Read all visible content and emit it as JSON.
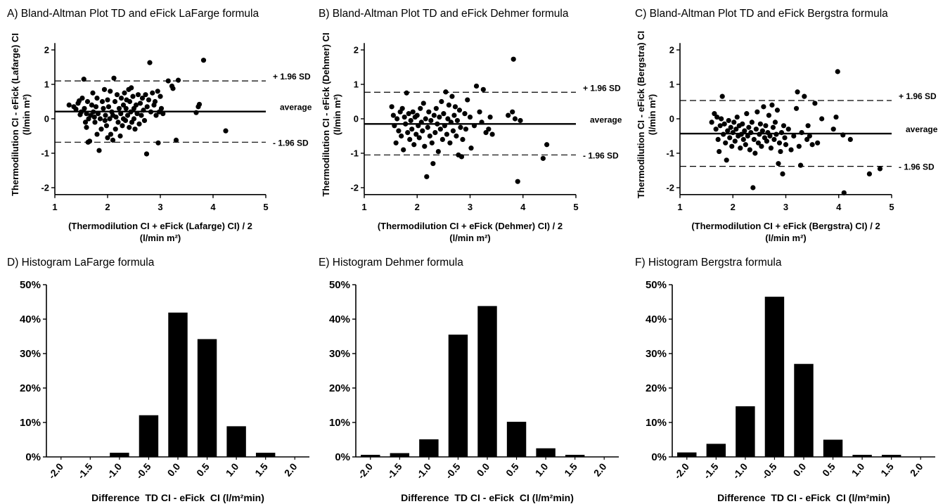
{
  "chart_data": [
    {
      "id": "A",
      "type": "scatter",
      "title": "A) Bland-Altman Plot TD and eFick LaFarge formula",
      "xlabel": "(Thermodilution CI + eFick (Lafarge) CI) / 2",
      "xlabel2": "(l/min m²)",
      "ylabel": "Thermodilution CI - eFick (Lafarge) CI",
      "ylabel2": "(l/min m²)",
      "xlim": [
        1,
        5
      ],
      "ylim": [
        -2.2,
        2.2
      ],
      "xticks": [
        1,
        2,
        3,
        4,
        5
      ],
      "yticks": [
        -2,
        -1,
        0,
        1,
        2
      ],
      "mean": 0.21,
      "upper": 1.1,
      "lower": -0.68,
      "upper_label": "+ 1.96 SD",
      "mean_label": "average",
      "lower_label": "- 1.96 SD",
      "points": [
        [
          1.27,
          0.4
        ],
        [
          1.36,
          0.35
        ],
        [
          1.4,
          0.28
        ],
        [
          1.44,
          0.45
        ],
        [
          1.46,
          0.52
        ],
        [
          1.48,
          0.12
        ],
        [
          1.5,
          0.2
        ],
        [
          1.52,
          0.6
        ],
        [
          1.55,
          1.15
        ],
        [
          1.56,
          0.3
        ],
        [
          1.58,
          -0.1
        ],
        [
          1.6,
          -0.25
        ],
        [
          1.6,
          0.15
        ],
        [
          1.62,
          0.5
        ],
        [
          1.63,
          -0.68
        ],
        [
          1.64,
          0.0
        ],
        [
          1.66,
          -0.65
        ],
        [
          1.68,
          0.1
        ],
        [
          1.7,
          0.4
        ],
        [
          1.72,
          0.75
        ],
        [
          1.73,
          0.2
        ],
        [
          1.75,
          0.05
        ],
        [
          1.76,
          -0.1
        ],
        [
          1.78,
          0.35
        ],
        [
          1.8,
          0.6
        ],
        [
          1.8,
          -0.45
        ],
        [
          1.82,
          0.15
        ],
        [
          1.84,
          -0.92
        ],
        [
          1.86,
          0.0
        ],
        [
          1.88,
          -0.3
        ],
        [
          1.9,
          0.5
        ],
        [
          1.92,
          0.3
        ],
        [
          1.94,
          0.85
        ],
        [
          1.95,
          -0.05
        ],
        [
          1.96,
          0.1
        ],
        [
          1.98,
          -0.2
        ],
        [
          2.0,
          0.55
        ],
        [
          2.0,
          -0.55
        ],
        [
          2.02,
          0.35
        ],
        [
          2.04,
          0.0
        ],
        [
          2.05,
          0.8
        ],
        [
          2.06,
          -0.45
        ],
        [
          2.08,
          0.2
        ],
        [
          2.1,
          -0.62
        ],
        [
          2.1,
          0.1
        ],
        [
          2.12,
          1.18
        ],
        [
          2.14,
          0.5
        ],
        [
          2.15,
          -0.3
        ],
        [
          2.16,
          0.05
        ],
        [
          2.18,
          0.7
        ],
        [
          2.2,
          -0.1
        ],
        [
          2.22,
          0.3
        ],
        [
          2.24,
          -0.5
        ],
        [
          2.25,
          0.15
        ],
        [
          2.26,
          0.6
        ],
        [
          2.28,
          -0.2
        ],
        [
          2.3,
          0.4
        ],
        [
          2.3,
          0.0
        ],
        [
          2.32,
          0.75
        ],
        [
          2.34,
          -0.05
        ],
        [
          2.35,
          0.3
        ],
        [
          2.36,
          0.55
        ],
        [
          2.38,
          0.1
        ],
        [
          2.4,
          0.85
        ],
        [
          2.41,
          -0.25
        ],
        [
          2.42,
          0.5
        ],
        [
          2.44,
          0.2
        ],
        [
          2.45,
          0.9
        ],
        [
          2.46,
          -0.1
        ],
        [
          2.48,
          0.65
        ],
        [
          2.5,
          0.3
        ],
        [
          2.5,
          0.0
        ],
        [
          2.52,
          -0.3
        ],
        [
          2.54,
          0.4
        ],
        [
          2.56,
          0.15
        ],
        [
          2.58,
          0.7
        ],
        [
          2.6,
          -0.15
        ],
        [
          2.62,
          0.45
        ],
        [
          2.64,
          0.1
        ],
        [
          2.66,
          0.6
        ],
        [
          2.68,
          0.25
        ],
        [
          2.7,
          -0.05
        ],
        [
          2.72,
          0.7
        ],
        [
          2.74,
          -1.02
        ],
        [
          2.75,
          0.35
        ],
        [
          2.78,
          0.55
        ],
        [
          2.8,
          1.63
        ],
        [
          2.82,
          0.2
        ],
        [
          2.85,
          0.75
        ],
        [
          2.88,
          0.4
        ],
        [
          2.9,
          0.5
        ],
        [
          2.92,
          0.1
        ],
        [
          2.95,
          0.8
        ],
        [
          2.96,
          -0.7
        ],
        [
          2.98,
          0.2
        ],
        [
          3.0,
          0.65
        ],
        [
          3.02,
          0.3
        ],
        [
          3.05,
          0.15
        ],
        [
          3.15,
          1.1
        ],
        [
          3.22,
          0.95
        ],
        [
          3.24,
          0.88
        ],
        [
          3.3,
          -0.62
        ],
        [
          3.34,
          1.12
        ],
        [
          3.68,
          0.18
        ],
        [
          3.72,
          0.35
        ],
        [
          3.74,
          0.42
        ],
        [
          3.82,
          1.7
        ],
        [
          4.24,
          -0.35
        ]
      ]
    },
    {
      "id": "B",
      "type": "scatter",
      "title": "B) Bland-Altman Plot TD and eFick Dehmer formula",
      "xlabel": "(Thermodilution CI + eFick (Dehmer) CI) / 2",
      "xlabel2": "(l/min m²)",
      "ylabel": "Thermodilution CI - eFick (Dehmer) CI",
      "ylabel2": "(l/min m²)",
      "xlim": [
        1,
        5
      ],
      "ylim": [
        -2.2,
        2.2
      ],
      "xticks": [
        1,
        2,
        3,
        4,
        5
      ],
      "yticks": [
        -2,
        -1,
        0,
        1,
        2
      ],
      "mean": -0.15,
      "upper": 0.77,
      "lower": -1.05,
      "upper_label": "+ 1.96 SD",
      "mean_label": "average",
      "lower_label": "- 1.96 SD",
      "points": [
        [
          1.52,
          0.35
        ],
        [
          1.55,
          0.1
        ],
        [
          1.57,
          -0.2
        ],
        [
          1.6,
          -0.7
        ],
        [
          1.62,
          0.0
        ],
        [
          1.65,
          -0.35
        ],
        [
          1.68,
          0.2
        ],
        [
          1.7,
          -0.5
        ],
        [
          1.72,
          0.3
        ],
        [
          1.74,
          -0.9
        ],
        [
          1.76,
          0.05
        ],
        [
          1.78,
          -0.15
        ],
        [
          1.8,
          0.75
        ],
        [
          1.82,
          -0.4
        ],
        [
          1.84,
          0.15
        ],
        [
          1.86,
          -0.6
        ],
        [
          1.88,
          -0.05
        ],
        [
          1.9,
          -0.3
        ],
        [
          1.92,
          0.2
        ],
        [
          1.94,
          -0.75
        ],
        [
          1.96,
          0.05
        ],
        [
          1.98,
          -0.45
        ],
        [
          2.0,
          0.1
        ],
        [
          2.02,
          -0.2
        ],
        [
          2.04,
          -0.55
        ],
        [
          2.06,
          0.3
        ],
        [
          2.08,
          -0.1
        ],
        [
          2.1,
          -0.35
        ],
        [
          2.12,
          0.45
        ],
        [
          2.14,
          -0.8
        ],
        [
          2.16,
          0.0
        ],
        [
          2.18,
          -1.68
        ],
        [
          2.2,
          -0.25
        ],
        [
          2.22,
          0.2
        ],
        [
          2.24,
          -0.5
        ],
        [
          2.26,
          -0.05
        ],
        [
          2.28,
          -0.7
        ],
        [
          2.3,
          -1.3
        ],
        [
          2.32,
          0.1
        ],
        [
          2.34,
          -0.4
        ],
        [
          2.36,
          0.3
        ],
        [
          2.38,
          -0.15
        ],
        [
          2.4,
          -0.95
        ],
        [
          2.42,
          0.05
        ],
        [
          2.44,
          -0.3
        ],
        [
          2.46,
          0.5
        ],
        [
          2.48,
          -0.6
        ],
        [
          2.5,
          0.15
        ],
        [
          2.52,
          -0.2
        ],
        [
          2.54,
          0.78
        ],
        [
          2.56,
          -0.45
        ],
        [
          2.58,
          0.0
        ],
        [
          2.6,
          0.4
        ],
        [
          2.62,
          -0.7
        ],
        [
          2.64,
          -0.1
        ],
        [
          2.66,
          0.65
        ],
        [
          2.68,
          -0.35
        ],
        [
          2.7,
          0.1
        ],
        [
          2.72,
          0.35
        ],
        [
          2.74,
          -0.5
        ],
        [
          2.76,
          -0.05
        ],
        [
          2.78,
          -1.05
        ],
        [
          2.8,
          0.25
        ],
        [
          2.82,
          -0.25
        ],
        [
          2.84,
          -1.1
        ],
        [
          2.86,
          -0.6
        ],
        [
          2.9,
          0.15
        ],
        [
          2.92,
          -0.3
        ],
        [
          2.95,
          0.55
        ],
        [
          3.0,
          0.05
        ],
        [
          3.02,
          -0.85
        ],
        [
          3.08,
          -0.2
        ],
        [
          3.12,
          0.95
        ],
        [
          3.18,
          0.2
        ],
        [
          3.22,
          -0.1
        ],
        [
          3.25,
          0.85
        ],
        [
          3.3,
          -0.4
        ],
        [
          3.35,
          -0.3
        ],
        [
          3.38,
          0.05
        ],
        [
          3.42,
          -0.45
        ],
        [
          3.72,
          0.1
        ],
        [
          3.8,
          0.2
        ],
        [
          3.82,
          1.73
        ],
        [
          3.85,
          0.0
        ],
        [
          3.9,
          -1.82
        ],
        [
          3.95,
          -0.05
        ],
        [
          4.38,
          -1.15
        ],
        [
          4.45,
          -0.75
        ]
      ]
    },
    {
      "id": "C",
      "type": "scatter",
      "title": "C) Bland-Altman Plot TD and eFick Bergstra formula",
      "xlabel": "(Thermodilution CI + eFick (Bergstra) CI) / 2",
      "xlabel2": "(l/min m²)",
      "ylabel": "Thermodilution CI - eFick (Bergstra) CI",
      "ylabel2": "(l/min m²)",
      "xlim": [
        1,
        5
      ],
      "ylim": [
        -2.2,
        2.2
      ],
      "xticks": [
        1,
        2,
        3,
        4,
        5
      ],
      "yticks": [
        -2,
        -1,
        0,
        1,
        2
      ],
      "mean": -0.43,
      "upper": 0.53,
      "lower": -1.38,
      "upper_label": "+ 1.96 SD",
      "mean_label": "average",
      "lower_label": "- 1.96 SD",
      "points": [
        [
          1.6,
          -0.1
        ],
        [
          1.65,
          0.15
        ],
        [
          1.68,
          -0.3
        ],
        [
          1.7,
          0.05
        ],
        [
          1.72,
          -0.6
        ],
        [
          1.74,
          -0.95
        ],
        [
          1.76,
          -0.2
        ],
        [
          1.78,
          0.0
        ],
        [
          1.8,
          0.65
        ],
        [
          1.82,
          -0.45
        ],
        [
          1.84,
          -0.15
        ],
        [
          1.86,
          -0.7
        ],
        [
          1.88,
          -1.2
        ],
        [
          1.9,
          -0.35
        ],
        [
          1.92,
          -0.05
        ],
        [
          1.94,
          -0.55
        ],
        [
          1.96,
          -0.25
        ],
        [
          1.98,
          -0.8
        ],
        [
          2.0,
          -0.4
        ],
        [
          2.02,
          -0.1
        ],
        [
          2.04,
          -0.65
        ],
        [
          2.06,
          -0.3
        ],
        [
          2.08,
          0.05
        ],
        [
          2.1,
          -0.5
        ],
        [
          2.12,
          -0.2
        ],
        [
          2.14,
          -0.85
        ],
        [
          2.16,
          -0.45
        ],
        [
          2.18,
          -0.15
        ],
        [
          2.2,
          -0.6
        ],
        [
          2.22,
          -0.35
        ],
        [
          2.24,
          -0.75
        ],
        [
          2.26,
          0.15
        ],
        [
          2.28,
          -0.5
        ],
        [
          2.3,
          -0.25
        ],
        [
          2.32,
          -0.9
        ],
        [
          2.34,
          -0.4
        ],
        [
          2.36,
          -0.1
        ],
        [
          2.38,
          -2.0
        ],
        [
          2.4,
          -0.6
        ],
        [
          2.42,
          -1.0
        ],
        [
          2.44,
          -0.3
        ],
        [
          2.46,
          0.2
        ],
        [
          2.48,
          -0.7
        ],
        [
          2.5,
          -0.45
        ],
        [
          2.52,
          -0.15
        ],
        [
          2.54,
          -0.8
        ],
        [
          2.56,
          -0.35
        ],
        [
          2.58,
          0.35
        ],
        [
          2.6,
          -0.55
        ],
        [
          2.62,
          -0.2
        ],
        [
          2.64,
          -0.65
        ],
        [
          2.66,
          -0.4
        ],
        [
          2.68,
          0.1
        ],
        [
          2.7,
          -0.5
        ],
        [
          2.72,
          -0.85
        ],
        [
          2.74,
          0.4
        ],
        [
          2.76,
          -0.25
        ],
        [
          2.78,
          -0.6
        ],
        [
          2.8,
          -0.1
        ],
        [
          2.82,
          -0.45
        ],
        [
          2.84,
          0.25
        ],
        [
          2.86,
          -1.3
        ],
        [
          2.88,
          -0.7
        ],
        [
          2.9,
          -0.95
        ],
        [
          2.92,
          -0.4
        ],
        [
          2.94,
          -1.6
        ],
        [
          2.96,
          -0.2
        ],
        [
          2.98,
          -0.55
        ],
        [
          3.0,
          -0.75
        ],
        [
          3.05,
          -0.3
        ],
        [
          3.1,
          -0.9
        ],
        [
          3.15,
          -0.5
        ],
        [
          3.2,
          0.3
        ],
        [
          3.22,
          0.78
        ],
        [
          3.25,
          -0.8
        ],
        [
          3.28,
          -1.35
        ],
        [
          3.3,
          -0.4
        ],
        [
          3.35,
          0.65
        ],
        [
          3.4,
          -0.6
        ],
        [
          3.42,
          -0.2
        ],
        [
          3.45,
          -0.5
        ],
        [
          3.5,
          -0.75
        ],
        [
          3.55,
          0.45
        ],
        [
          3.6,
          -0.7
        ],
        [
          3.68,
          0.0
        ],
        [
          3.9,
          -0.3
        ],
        [
          3.95,
          0.05
        ],
        [
          3.98,
          1.37
        ],
        [
          4.08,
          -0.47
        ],
        [
          4.1,
          -2.15
        ],
        [
          4.22,
          -0.6
        ],
        [
          4.58,
          -1.6
        ],
        [
          4.78,
          -1.45
        ]
      ]
    },
    {
      "id": "D",
      "type": "bar",
      "title": "D) Histogram LaFarge formula",
      "xlabel": "Difference  TD CI - eFick  CI (l/m²min)",
      "categories": [
        "-2.0",
        "-1.5",
        "-1.0",
        "-0.5",
        "0.0",
        "0.5",
        "1.0",
        "1.5",
        "2.0"
      ],
      "values": [
        0,
        0,
        1.2,
        12.1,
        41.9,
        34.2,
        8.9,
        1.2,
        0
      ],
      "ylim": [
        0,
        50
      ],
      "yticks": [
        "0%",
        "10%",
        "20%",
        "30%",
        "40%",
        "50%"
      ]
    },
    {
      "id": "E",
      "type": "bar",
      "title": "E) Histogram Dehmer formula",
      "xlabel": "Difference  TD CI - eFick  CI (l/m²min)",
      "categories": [
        "-2.0",
        "-1.5",
        "-1.0",
        "-0.5",
        "0.0",
        "0.5",
        "1.0",
        "1.5",
        "2.0"
      ],
      "values": [
        0.6,
        1.1,
        5.1,
        35.5,
        43.8,
        10.2,
        2.5,
        0.6,
        0
      ],
      "ylim": [
        0,
        50
      ],
      "yticks": [
        "0%",
        "10%",
        "20%",
        "30%",
        "40%",
        "50%"
      ]
    },
    {
      "id": "F",
      "type": "bar",
      "title": "F) Histogram Bergstra formula",
      "xlabel": "Difference  TD CI - eFick  CI (l/m²min)",
      "categories": [
        "-2.0",
        "-1.5",
        "-1.0",
        "-0.5",
        "0.0",
        "0.5",
        "1.0",
        "1.5",
        "2.0"
      ],
      "values": [
        1.3,
        3.8,
        14.7,
        46.5,
        27.0,
        5.0,
        0.6,
        0.6,
        0
      ],
      "ylim": [
        0,
        50
      ],
      "yticks": [
        "0%",
        "10%",
        "20%",
        "30%",
        "40%",
        "50%"
      ]
    }
  ]
}
